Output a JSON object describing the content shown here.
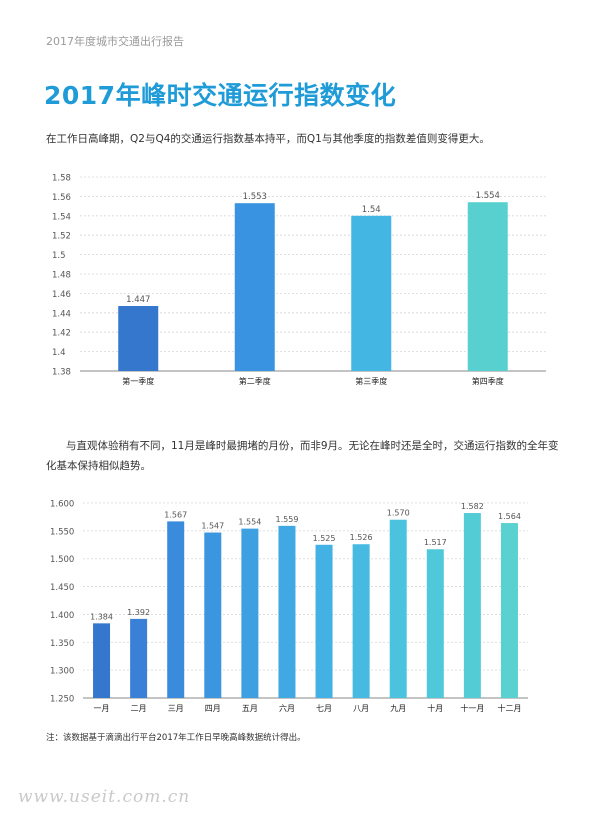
{
  "header": {
    "text": "2017年度城市交通出行报告"
  },
  "title": "2017年峰时交通运行指数变化",
  "intro1": "在工作日高峰期，Q2与Q4的交通运行指数基本持平，而Q1与其他季度的指数差值则变得更大。",
  "intro2": "与直观体验稍有不同，11月是峰时最拥堵的月份，而非9月。无论在峰时还是全时，交通运行指数的全年变化基本保持相似趋势。",
  "note": "注：该数据基于滴滴出行平台2017年工作日早晚高峰数据统计得出。",
  "watermark": "www.useit.com.cn",
  "chart_data": [
    {
      "type": "bar",
      "categories": [
        "第一季度",
        "第二季度",
        "第三季度",
        "第四季度"
      ],
      "values": [
        1.447,
        1.553,
        1.54,
        1.554
      ],
      "value_labels": [
        "1.447",
        "1.553",
        "1.54",
        "1.554"
      ],
      "y_ticks": [
        "1.38",
        "1.4",
        "1.42",
        "1.44",
        "1.46",
        "1.48",
        "1.5",
        "1.52",
        "1.54",
        "1.56",
        "1.58"
      ],
      "ylim": [
        1.38,
        1.58
      ],
      "grid": true,
      "colors": [
        "#3477cc",
        "#3a93e0",
        "#43b6e4",
        "#58d0d0"
      ]
    },
    {
      "type": "bar",
      "categories": [
        "一月",
        "二月",
        "三月",
        "四月",
        "五月",
        "六月",
        "七月",
        "八月",
        "九月",
        "十月",
        "十一月",
        "十二月"
      ],
      "values": [
        1.384,
        1.392,
        1.567,
        1.547,
        1.554,
        1.559,
        1.525,
        1.526,
        1.57,
        1.517,
        1.582,
        1.564
      ],
      "value_labels": [
        "1.384",
        "1.392",
        "1.567",
        "1.547",
        "1.554",
        "1.559",
        "1.525",
        "1.526",
        "1.570",
        "1.517",
        "1.582",
        "1.564"
      ],
      "y_ticks": [
        "1.250",
        "1.300",
        "1.350",
        "1.400",
        "1.450",
        "1.500",
        "1.550",
        "1.600"
      ],
      "ylim": [
        1.25,
        1.6
      ],
      "grid": true,
      "colors": [
        "#3477cc",
        "#3a80d6",
        "#3a8bdc",
        "#3c96df",
        "#3e9fe1",
        "#40a8e3",
        "#43b1e4",
        "#47bae2",
        "#4bc2de",
        "#4fc8da",
        "#54ccd6",
        "#5ad1d1"
      ]
    }
  ]
}
